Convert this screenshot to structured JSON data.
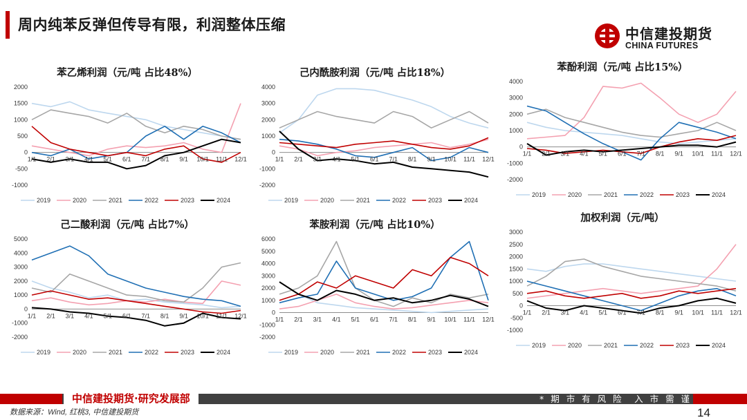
{
  "header": {
    "title": "周内纯苯反弹但传导有限，利润整体压缩"
  },
  "logo": {
    "name_cn": "中信建投期货",
    "name_en": "CHINA FUTURES",
    "icon": "citic-logo-icon"
  },
  "footer": {
    "org": "中信建投期货·研究发展部",
    "risk_notice": "* 期 市 有 风 险　入 市 需 谨 慎",
    "source": "数据来源：Wind, 红桃3, 中信建投期货",
    "page_number": "14"
  },
  "colors": {
    "accent": "#c00000",
    "footer_dark": "#404040"
  },
  "legend_labels": [
    "2019",
    "2020",
    "2021",
    "2022",
    "2023",
    "2024"
  ],
  "series_colors": [
    "#bdd7ee",
    "#f4a0b0",
    "#a6a6a6",
    "#1f6fb4",
    "#c00000",
    "#000000"
  ],
  "x_tick_labels": [
    "1/1",
    "2/1",
    "3/1",
    "4/1",
    "5/1",
    "6/1",
    "7/1",
    "8/1",
    "9/1",
    "10/1",
    "11/1",
    "12/1"
  ],
  "chart_data": [
    {
      "type": "line",
      "title": "苯乙烯利润（元/吨 占比48%）",
      "ylim": [
        -1000,
        2000
      ],
      "yticks": [
        "2000",
        "1500",
        "1000",
        "500",
        "0",
        "-500",
        "-1000"
      ],
      "series": [
        {
          "name": "2019",
          "values": [
            1500,
            1400,
            1550,
            1300,
            1200,
            1100,
            1000,
            800,
            700,
            600,
            500,
            400
          ]
        },
        {
          "name": "2020",
          "values": [
            200,
            100,
            0,
            -100,
            100,
            200,
            150,
            200,
            300,
            100,
            0,
            1500
          ]
        },
        {
          "name": "2021",
          "values": [
            1000,
            1300,
            1200,
            1100,
            900,
            1200,
            800,
            600,
            800,
            700,
            500,
            400
          ]
        },
        {
          "name": "2022",
          "values": [
            0,
            -100,
            100,
            -200,
            -100,
            0,
            500,
            800,
            400,
            800,
            600,
            300
          ]
        },
        {
          "name": "2023",
          "values": [
            800,
            300,
            100,
            0,
            -100,
            0,
            -100,
            100,
            200,
            -200,
            -300,
            0
          ]
        },
        {
          "name": "2024",
          "values": [
            -200,
            -300,
            -200,
            -300,
            -300,
            -500,
            -400,
            -100,
            0,
            200,
            400,
            300
          ]
        }
      ]
    },
    {
      "type": "line",
      "title": "己内酰胺利润（元/吨 占比18%）",
      "ylim": [
        -2000,
        4000
      ],
      "yticks": [
        "4000",
        "3000",
        "2000",
        "1000",
        "0",
        "-1000",
        "-2000"
      ],
      "series": [
        {
          "name": "2019",
          "values": [
            1200,
            2000,
            3500,
            3900,
            3900,
            3800,
            3500,
            3200,
            2800,
            2200,
            1800,
            1500
          ]
        },
        {
          "name": "2020",
          "values": [
            400,
            200,
            -200,
            0,
            100,
            300,
            400,
            500,
            600,
            300,
            500,
            800
          ]
        },
        {
          "name": "2021",
          "values": [
            1500,
            2000,
            2500,
            2200,
            2000,
            1800,
            2500,
            2200,
            1500,
            2000,
            2500,
            1800
          ]
        },
        {
          "name": "2022",
          "values": [
            800,
            700,
            500,
            200,
            -200,
            -300,
            0,
            300,
            -500,
            -300,
            300,
            0
          ]
        },
        {
          "name": "2023",
          "values": [
            600,
            500,
            400,
            300,
            500,
            600,
            700,
            500,
            300,
            200,
            400,
            900
          ]
        },
        {
          "name": "2024",
          "values": [
            1300,
            200,
            -500,
            -400,
            -500,
            -700,
            -600,
            -900,
            -1000,
            -1100,
            -1200,
            -1500
          ]
        }
      ]
    },
    {
      "type": "line",
      "title": "苯酚利润（元/吨 占比15%）",
      "ylim": [
        -2000,
        4000
      ],
      "yticks": [
        "4000",
        "3000",
        "2000",
        "1000",
        "0",
        "-1000",
        "-2000"
      ],
      "series": [
        {
          "name": "2019",
          "values": [
            1500,
            1200,
            1000,
            900,
            800,
            700,
            500,
            300,
            200,
            300,
            400,
            500
          ]
        },
        {
          "name": "2020",
          "values": [
            500,
            600,
            700,
            1800,
            3700,
            3600,
            3900,
            3000,
            2000,
            1500,
            2000,
            3400
          ]
        },
        {
          "name": "2021",
          "values": [
            2000,
            2300,
            1800,
            1500,
            1200,
            900,
            700,
            600,
            800,
            1000,
            1500,
            1000
          ]
        },
        {
          "name": "2022",
          "values": [
            2500,
            2200,
            1500,
            800,
            200,
            -300,
            -800,
            500,
            1500,
            1200,
            900,
            500
          ]
        },
        {
          "name": "2023",
          "values": [
            -100,
            -200,
            -400,
            -300,
            -200,
            -300,
            -400,
            0,
            300,
            500,
            400,
            700
          ]
        },
        {
          "name": "2024",
          "values": [
            200,
            -500,
            -300,
            -200,
            -300,
            -200,
            -100,
            0,
            100,
            100,
            0,
            300
          ]
        }
      ]
    },
    {
      "type": "line",
      "title": "己二酸利润（元/吨 占比7%）",
      "ylim": [
        -2000,
        5000
      ],
      "yticks": [
        "5000",
        "4000",
        "3000",
        "2000",
        "1000",
        "0",
        "-1000",
        "-2000"
      ],
      "series": [
        {
          "name": "2019",
          "values": [
            2000,
            1500,
            1200,
            800,
            1000,
            600,
            700,
            500,
            400,
            300,
            100,
            200
          ]
        },
        {
          "name": "2020",
          "values": [
            600,
            800,
            500,
            300,
            400,
            600,
            500,
            700,
            500,
            400,
            2000,
            1700
          ]
        },
        {
          "name": "2021",
          "values": [
            1500,
            1200,
            2500,
            2000,
            1500,
            1000,
            900,
            600,
            500,
            1500,
            3000,
            3300
          ]
        },
        {
          "name": "2022",
          "values": [
            3500,
            4000,
            4500,
            3800,
            2500,
            2000,
            1500,
            1200,
            900,
            700,
            600,
            200
          ]
        },
        {
          "name": "2023",
          "values": [
            1000,
            1300,
            1000,
            700,
            800,
            600,
            400,
            200,
            0,
            -200,
            -300,
            -100
          ]
        },
        {
          "name": "2024",
          "values": [
            100,
            0,
            -200,
            -300,
            -500,
            -600,
            -800,
            -1200,
            -1000,
            -300,
            -600,
            -700
          ]
        }
      ]
    },
    {
      "type": "line",
      "title": "苯胺利润（元/吨 占比10%）",
      "ylim": [
        -2000,
        6000
      ],
      "yticks": [
        "6000",
        "5000",
        "4000",
        "3000",
        "2000",
        "1000",
        "0",
        "-1000",
        "-2000"
      ],
      "series": [
        {
          "name": "2019",
          "values": [
            1000,
            1500,
            800,
            600,
            400,
            300,
            200,
            100,
            0,
            100,
            200,
            300
          ]
        },
        {
          "name": "2020",
          "values": [
            300,
            500,
            1000,
            1500,
            800,
            500,
            300,
            400,
            600,
            800,
            1000,
            800
          ]
        },
        {
          "name": "2021",
          "values": [
            1500,
            2000,
            3000,
            5800,
            2000,
            1000,
            500,
            1200,
            800,
            1500,
            1200,
            1500
          ]
        },
        {
          "name": "2022",
          "values": [
            800,
            1200,
            1500,
            4200,
            2000,
            1500,
            1000,
            1300,
            2000,
            4500,
            5800,
            1000
          ]
        },
        {
          "name": "2023",
          "values": [
            1000,
            1500,
            2500,
            2000,
            3000,
            2500,
            2000,
            3500,
            3000,
            4500,
            4000,
            3000
          ]
        },
        {
          "name": "2024",
          "values": [
            2500,
            1500,
            1000,
            1800,
            1500,
            1000,
            1200,
            800,
            1000,
            1400,
            1100,
            500
          ]
        }
      ]
    },
    {
      "type": "line",
      "title": "加权利润（元/吨）",
      "ylim": [
        -1000,
        3000
      ],
      "yticks": [
        "3000",
        "2500",
        "2000",
        "1500",
        "1000",
        "500",
        "0",
        "-500",
        "-1000"
      ],
      "series": [
        {
          "name": "2019",
          "values": [
            1500,
            1400,
            1600,
            1700,
            1700,
            1600,
            1500,
            1400,
            1300,
            1200,
            1100,
            1000
          ]
        },
        {
          "name": "2020",
          "values": [
            300,
            400,
            500,
            600,
            700,
            600,
            500,
            600,
            700,
            800,
            1500,
            2500
          ]
        },
        {
          "name": "2021",
          "values": [
            800,
            1200,
            1800,
            1900,
            1600,
            1400,
            1200,
            1100,
            1000,
            900,
            800,
            600
          ]
        },
        {
          "name": "2022",
          "values": [
            1000,
            800,
            600,
            400,
            200,
            0,
            -200,
            100,
            400,
            600,
            700,
            400
          ]
        },
        {
          "name": "2023",
          "values": [
            500,
            600,
            400,
            300,
            400,
            500,
            300,
            400,
            600,
            500,
            600,
            700
          ]
        },
        {
          "name": "2024",
          "values": [
            200,
            -100,
            -200,
            0,
            -100,
            -200,
            -300,
            -100,
            0,
            200,
            300,
            100
          ]
        }
      ]
    }
  ]
}
